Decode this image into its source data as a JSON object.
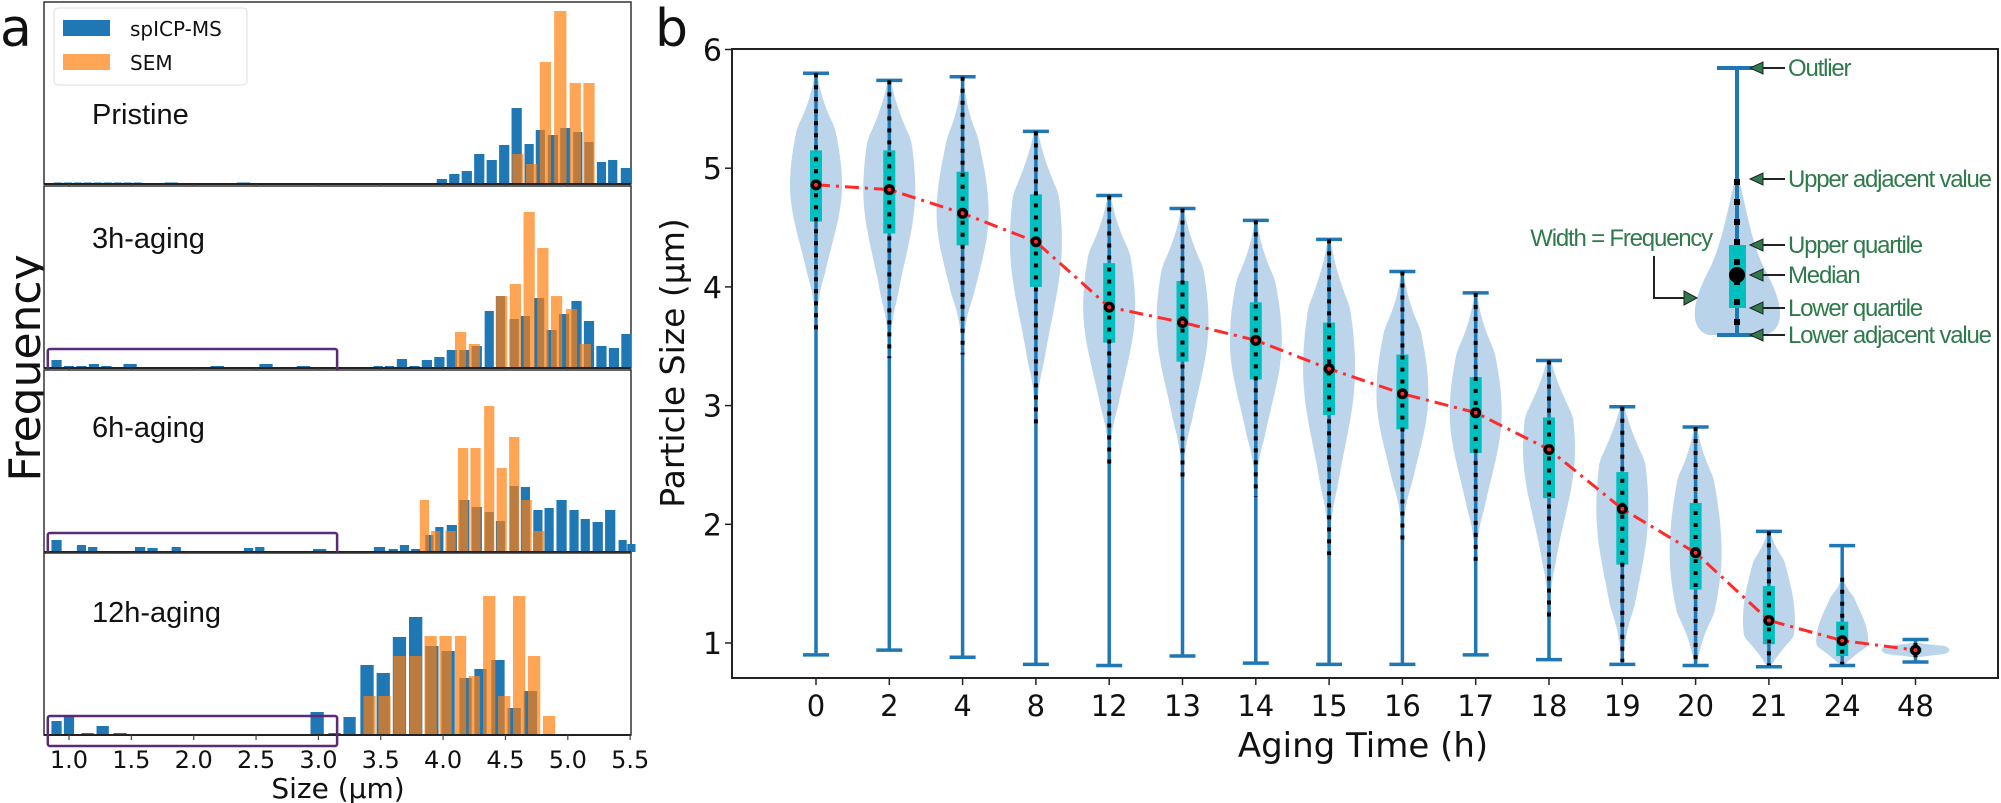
{
  "panel_labels": {
    "a": "a",
    "b": "b"
  },
  "colors": {
    "spicpms": "#1f77b4",
    "sem": "#ff7f0e",
    "highlight_box": "#5b2a7a",
    "violin_fill": "#b9d3ea",
    "whisker": "#1f77b4",
    "box": "#00bfbf",
    "median_line": "#ff2a2a",
    "annotation": "#2f7a4c"
  },
  "chart_data": [
    {
      "type": "bar",
      "panel": "a",
      "xlabel": "Size (µm)",
      "ylabel": "Frequency",
      "xlim": [
        0.8,
        5.5
      ],
      "xticks": [
        "1.0",
        "1.5",
        "2.0",
        "2.5",
        "3.0",
        "3.5",
        "4.0",
        "4.5",
        "5.0",
        "5.5"
      ],
      "ylim": [
        0,
        182
      ],
      "yunits": "arbitrary",
      "legend": {
        "position": "top-left",
        "entries": [
          "spICP-MS",
          "SEM"
        ]
      },
      "subplots": [
        {
          "label": "Pristine",
          "highlight_range": null,
          "spicpms": {
            "x": [
              0.91,
              0.99,
              1.07,
              1.15,
              1.23,
              1.31,
              1.39,
              1.47,
              1.55,
              1.82,
              2.4,
              3.99,
              4.09,
              4.19,
              4.29,
              4.39,
              4.49,
              4.59,
              4.69,
              4.78,
              4.88,
              4.98,
              5.08,
              5.17,
              5.27,
              5.36,
              5.47
            ],
            "y": [
              1.5,
              1.5,
              1.5,
              1.5,
              1.5,
              1.5,
              1.5,
              1.5,
              1.5,
              1.5,
              1.5,
              5,
              10,
              13,
              30,
              24,
              39,
              76,
              40,
              54,
              49,
              56,
              52,
              42,
              22,
              24,
              16
            ]
          },
          "sem": {
            "x": [
              4.6,
              4.71,
              4.82,
              4.94,
              5.06,
              5.17
            ],
            "y": [
              30,
              20,
              122,
              173,
              101,
              101
            ]
          }
        },
        {
          "label": "3h-aging",
          "highlight_range": [
            0.83,
            3.15
          ],
          "spicpms": {
            "x": [
              0.9,
              1.0,
              1.1,
              1.2,
              1.3,
              1.49,
              2.19,
              2.58,
              2.88,
              3.48,
              3.57,
              3.67,
              3.77,
              3.87,
              3.97,
              4.07,
              4.17,
              4.27,
              4.37,
              4.46,
              4.57,
              4.66,
              4.77,
              4.87,
              4.97,
              5.07,
              5.17,
              5.27,
              5.37,
              5.47
            ],
            "y": [
              8,
              2,
              2,
              4,
              2,
              4,
              2,
              4,
              2,
              2,
              2,
              9,
              2,
              8,
              11,
              18,
              18,
              22,
              57,
              72,
              49,
              52,
              70,
              38,
              54,
              67,
              47,
              22,
              20,
              34
            ]
          },
          "sem": {
            "x": [
              4.14,
              4.25,
              4.47,
              4.58,
              4.69,
              4.8,
              4.91,
              5.03,
              5.14
            ],
            "y": [
              36,
              24,
              72,
              84,
              156,
              120,
              72,
              59,
              24
            ]
          }
        },
        {
          "label": "6h-aging",
          "highlight_range": [
            0.83,
            3.15
          ],
          "spicpms": {
            "x": [
              0.9,
              1.0,
              1.1,
              1.19,
              1.28,
              1.38,
              1.57,
              1.67,
              1.77,
              1.86,
              1.95,
              2.34,
              2.44,
              2.53,
              2.63,
              2.82,
              3.01,
              3.3,
              3.49,
              3.6,
              3.69,
              3.78,
              3.89,
              3.97,
              4.07,
              4.17,
              4.27,
              4.37,
              4.46,
              4.57,
              4.66,
              4.76,
              4.85,
              4.95,
              5.05,
              5.14,
              5.24,
              5.34,
              5.44,
              5.51
            ],
            "y": [
              12,
              1,
              7,
              5,
              1,
              1,
              5,
              4,
              1,
              5,
              1,
              1,
              4,
              5,
              1,
              1,
              3,
              1,
              5,
              3,
              7,
              3,
              17,
              25,
              27,
              52,
              45,
              40,
              31,
              66,
              65,
              42,
              44,
              52,
              42,
              33,
              30,
              42,
              12,
              8
            ]
          },
          "sem": {
            "x": [
              3.85,
              3.94,
              4.06,
              4.16,
              4.26,
              4.37,
              4.47,
              4.57,
              4.67,
              4.77
            ],
            "y": [
              52,
              21,
              21,
              104,
              104,
              146,
              84,
              115,
              52,
              21
            ]
          }
        },
        {
          "label": "12h-aging",
          "highlight_range": [
            0.83,
            3.15
          ],
          "spicpms": {
            "x": [
              0.9,
              1.0,
              1.15,
              1.27,
              1.41,
              1.67,
              1.94,
              2.07,
              2.32,
              2.72,
              2.86,
              2.99,
              3.13,
              3.25,
              3.39,
              3.52,
              3.65,
              3.78,
              3.91,
              4.04,
              4.18,
              4.3,
              4.44,
              4.57,
              4.7
            ],
            "y": [
              14,
              20,
              2,
              9,
              2,
              1,
              1,
              1,
              1,
              1,
              1,
              23,
              2,
              18,
              70,
              62,
              98,
              118,
              89,
              84,
              57,
              66,
              75,
              27,
              44
            ]
          },
          "sem": {
            "x": [
              3.41,
              3.53,
              3.65,
              3.78,
              3.9,
              4.02,
              4.14,
              4.25,
              4.37,
              4.49,
              4.61,
              4.73,
              4.85
            ],
            "y": [
              39,
              39,
              79,
              79,
              99,
              99,
              99,
              59,
              139,
              39,
              139,
              79,
              19
            ]
          }
        }
      ]
    },
    {
      "type": "violin",
      "panel": "b",
      "xlabel": "Aging Time (h)",
      "ylabel": "Particle Size (µm)",
      "ylim": [
        0.7,
        6
      ],
      "yticks": [
        "1",
        "2",
        "3",
        "4",
        "5",
        "6"
      ],
      "categories": [
        "0",
        "2",
        "4",
        "8",
        "12",
        "13",
        "14",
        "15",
        "16",
        "17",
        "18",
        "19",
        "20",
        "21",
        "24",
        "48"
      ],
      "max": [
        5.8,
        5.74,
        5.77,
        5.31,
        4.77,
        4.66,
        4.56,
        4.4,
        4.13,
        3.95,
        3.38,
        2.99,
        2.82,
        1.94,
        1.82,
        1.03
      ],
      "min": [
        0.9,
        0.94,
        0.88,
        0.82,
        0.81,
        0.89,
        0.83,
        0.82,
        0.82,
        0.9,
        0.86,
        0.82,
        0.81,
        0.8,
        0.81,
        0.84
      ],
      "q3": [
        5.15,
        5.15,
        4.97,
        4.78,
        4.2,
        4.05,
        3.87,
        3.7,
        3.43,
        3.24,
        2.9,
        2.44,
        2.18,
        1.48,
        1.18,
        0.96
      ],
      "q1": [
        4.55,
        4.45,
        4.35,
        4.0,
        3.53,
        3.37,
        3.22,
        2.92,
        2.8,
        2.6,
        2.22,
        1.66,
        1.45,
        0.99,
        0.89,
        0.92
      ],
      "median": [
        4.86,
        4.82,
        4.62,
        4.38,
        3.83,
        3.7,
        3.55,
        3.31,
        3.1,
        2.94,
        2.63,
        2.13,
        1.76,
        1.19,
        1.02,
        0.94
      ],
      "kde_low": [
        3.64,
        3.4,
        3.43,
        2.84,
        2.51,
        2.35,
        2.23,
        1.74,
        1.87,
        1.64,
        1.19,
        0.84,
        0.82,
        0.81,
        0.82,
        0.88
      ],
      "kde_high": [
        5.8,
        5.74,
        5.77,
        5.31,
        4.77,
        4.66,
        4.56,
        4.4,
        4.13,
        3.95,
        3.38,
        2.99,
        2.82,
        1.94,
        1.55,
        1.0
      ],
      "median_trend_line": "dash-dot",
      "inset_legend": {
        "labels": [
          "Outlier",
          "Upper adjacent value",
          "Upper quartile",
          "Median",
          "Lower quartile",
          "Lower adjacent value"
        ],
        "width_label": "Width = Frequency"
      }
    }
  ]
}
